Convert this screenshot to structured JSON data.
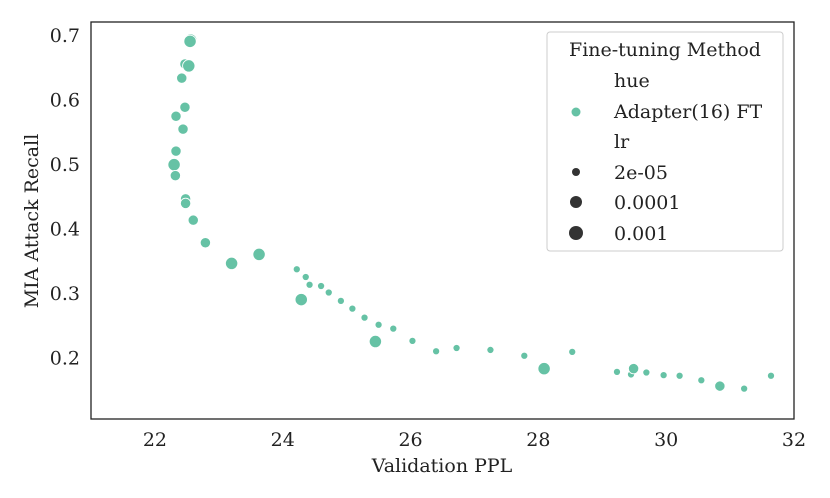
{
  "chart_data": {
    "type": "scatter",
    "xlabel": "Validation PPL",
    "ylabel": "MIA Attack Recall",
    "xlim": [
      21.0,
      32.0
    ],
    "ylim": [
      0.105,
      0.72
    ],
    "xticks": [
      22,
      24,
      26,
      28,
      30,
      32
    ],
    "yticks": [
      0.2,
      0.3,
      0.4,
      0.5,
      0.6,
      0.7
    ],
    "grid": false,
    "color": "#66c2a5",
    "legend": {
      "title": "Fine-tuning Method",
      "placement": "top-right",
      "hue_header": "hue",
      "hue_entries": [
        {
          "label": "Adapter(16) FT",
          "color": "#66c2a5"
        }
      ],
      "size_header": "lr",
      "size_entries": [
        {
          "label": "2e-05",
          "lr": 2e-05
        },
        {
          "label": "0.0001",
          "lr": 0.0001
        },
        {
          "label": "0.001",
          "lr": 0.001
        }
      ]
    },
    "series": [
      {
        "name": "Adapter(16) FT",
        "points": [
          {
            "x": 22.56,
            "y": 0.692,
            "lr": 0.001
          },
          {
            "x": 22.55,
            "y": 0.69,
            "lr": 0.001
          },
          {
            "x": 22.47,
            "y": 0.655,
            "lr": 0.0001
          },
          {
            "x": 22.53,
            "y": 0.652,
            "lr": 0.001
          },
          {
            "x": 22.42,
            "y": 0.633,
            "lr": 0.0001
          },
          {
            "x": 22.47,
            "y": 0.588,
            "lr": 0.0001
          },
          {
            "x": 22.33,
            "y": 0.574,
            "lr": 0.0001
          },
          {
            "x": 22.44,
            "y": 0.554,
            "lr": 0.0001
          },
          {
            "x": 22.33,
            "y": 0.52,
            "lr": 0.0001
          },
          {
            "x": 22.3,
            "y": 0.499,
            "lr": 0.001
          },
          {
            "x": 22.32,
            "y": 0.482,
            "lr": 0.0001
          },
          {
            "x": 22.48,
            "y": 0.446,
            "lr": 0.0001
          },
          {
            "x": 22.48,
            "y": 0.439,
            "lr": 0.0001
          },
          {
            "x": 22.6,
            "y": 0.413,
            "lr": 0.0001
          },
          {
            "x": 22.79,
            "y": 0.378,
            "lr": 0.0001
          },
          {
            "x": 23.2,
            "y": 0.346,
            "lr": 0.001
          },
          {
            "x": 23.63,
            "y": 0.36,
            "lr": 0.001
          },
          {
            "x": 24.22,
            "y": 0.337,
            "lr": 2e-05
          },
          {
            "x": 24.36,
            "y": 0.325,
            "lr": 2e-05
          },
          {
            "x": 24.42,
            "y": 0.313,
            "lr": 2e-05
          },
          {
            "x": 24.6,
            "y": 0.311,
            "lr": 2e-05
          },
          {
            "x": 24.72,
            "y": 0.301,
            "lr": 2e-05
          },
          {
            "x": 24.29,
            "y": 0.29,
            "lr": 0.001
          },
          {
            "x": 24.91,
            "y": 0.288,
            "lr": 2e-05
          },
          {
            "x": 25.09,
            "y": 0.276,
            "lr": 2e-05
          },
          {
            "x": 25.28,
            "y": 0.262,
            "lr": 2e-05
          },
          {
            "x": 25.5,
            "y": 0.251,
            "lr": 2e-05
          },
          {
            "x": 25.73,
            "y": 0.245,
            "lr": 2e-05
          },
          {
            "x": 25.45,
            "y": 0.225,
            "lr": 0.001
          },
          {
            "x": 26.03,
            "y": 0.226,
            "lr": 2e-05
          },
          {
            "x": 26.4,
            "y": 0.21,
            "lr": 2e-05
          },
          {
            "x": 26.72,
            "y": 0.215,
            "lr": 2e-05
          },
          {
            "x": 27.25,
            "y": 0.212,
            "lr": 2e-05
          },
          {
            "x": 27.78,
            "y": 0.203,
            "lr": 2e-05
          },
          {
            "x": 28.53,
            "y": 0.209,
            "lr": 2e-05
          },
          {
            "x": 28.09,
            "y": 0.183,
            "lr": 0.001
          },
          {
            "x": 29.23,
            "y": 0.178,
            "lr": 2e-05
          },
          {
            "x": 29.45,
            "y": 0.174,
            "lr": 2e-05
          },
          {
            "x": 29.49,
            "y": 0.183,
            "lr": 0.0001
          },
          {
            "x": 29.69,
            "y": 0.177,
            "lr": 2e-05
          },
          {
            "x": 29.96,
            "y": 0.173,
            "lr": 2e-05
          },
          {
            "x": 30.21,
            "y": 0.172,
            "lr": 2e-05
          },
          {
            "x": 30.55,
            "y": 0.165,
            "lr": 2e-05
          },
          {
            "x": 30.84,
            "y": 0.156,
            "lr": 0.0001
          },
          {
            "x": 31.22,
            "y": 0.152,
            "lr": 2e-05
          },
          {
            "x": 31.64,
            "y": 0.172,
            "lr": 2e-05
          }
        ]
      }
    ]
  }
}
